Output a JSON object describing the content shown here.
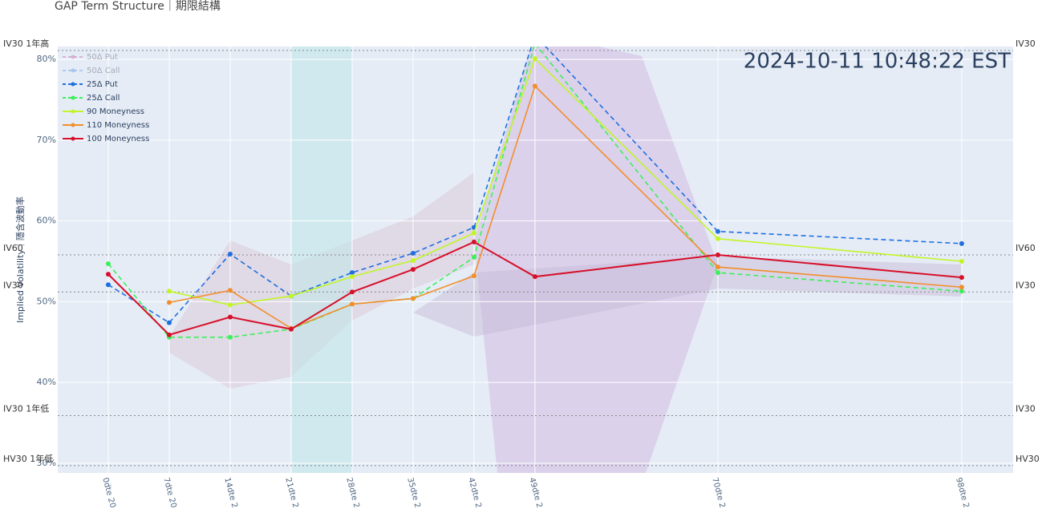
{
  "chart_data": {
    "type": "line",
    "title": "GAP Term Structure｜期限結構",
    "timestamp": "2024-10-11 10:48:22 EST",
    "y_label": "Implied Volatility｜隱含波動率",
    "x": [
      0,
      7,
      14,
      21,
      28,
      35,
      42,
      49,
      70,
      98
    ],
    "xlim": [
      -5.8,
      103.9
    ],
    "xticks": [
      {
        "value": 0,
        "label": "0dte 20"
      },
      {
        "value": 7,
        "label": "7dte 20"
      },
      {
        "value": 14,
        "label": "14dte 2"
      },
      {
        "value": 21,
        "label": "21dte 2"
      },
      {
        "value": 28,
        "label": "28dte 2"
      },
      {
        "value": 35,
        "label": "35dte 2"
      },
      {
        "value": 42,
        "label": "42dte 2"
      },
      {
        "value": 49,
        "label": "49dte 2"
      },
      {
        "value": 70,
        "label": "70dte 2"
      },
      {
        "value": 98,
        "label": "98dte 2"
      }
    ],
    "ylim": [
      28.8,
      81.6
    ],
    "yticks": [
      {
        "value": 30,
        "label": "30%"
      },
      {
        "value": 40,
        "label": "40%"
      },
      {
        "value": 50,
        "label": "50%"
      },
      {
        "value": 60,
        "label": "60%"
      },
      {
        "value": 70,
        "label": "70%"
      },
      {
        "value": 80,
        "label": "80%"
      }
    ],
    "grid": true,
    "highlight_range": [
      21,
      28
    ],
    "reference_lines": [
      {
        "label": "IV30 1年高",
        "right_label": "IV30",
        "value": 81.1
      },
      {
        "label": "IV60",
        "right_label": "IV60",
        "value": 55.8
      },
      {
        "label": "IV30",
        "right_label": "IV30",
        "value": 51.2
      },
      {
        "label": "IV30 1年低",
        "right_label": "IV30",
        "value": 35.9
      },
      {
        "label": "HV30 1年低",
        "right_label": "HV30",
        "value": 29.7
      }
    ],
    "legend": "top-left",
    "series": [
      {
        "name": "50Δ Put",
        "color": "#c77dbb",
        "dash": true,
        "visible": false
      },
      {
        "name": "50Δ Call",
        "color": "#7aa6e8",
        "dash": true,
        "visible": false
      },
      {
        "name": "25Δ Put",
        "color": "#1f6fe0",
        "dash": true,
        "visible": true,
        "values": [
          52.1,
          47.4,
          55.9,
          50.7,
          53.6,
          56.0,
          59.2,
          83.0,
          58.7,
          57.2
        ]
      },
      {
        "name": "25Δ Call",
        "color": "#3cf05a",
        "dash": true,
        "visible": true,
        "values": [
          54.7,
          45.6,
          45.6,
          46.6,
          49.7,
          50.4,
          55.5,
          82.0,
          53.6,
          51.3
        ]
      },
      {
        "name": "90 Moneyness",
        "color": "#c2f527",
        "dash": false,
        "visible": true,
        "values": [
          null,
          51.3,
          49.6,
          50.7,
          53.1,
          55.1,
          58.5,
          80.1,
          57.8,
          55.0
        ]
      },
      {
        "name": "110 Moneyness",
        "color": "#f28e2b",
        "dash": false,
        "visible": true,
        "values": [
          null,
          49.9,
          51.4,
          46.7,
          49.7,
          50.4,
          53.2,
          76.7,
          54.3,
          51.8
        ]
      },
      {
        "name": "100 Moneyness",
        "color": "#d7102a",
        "dash": false,
        "visible": true,
        "values": [
          53.4,
          45.9,
          48.1,
          46.6,
          51.2,
          54.0,
          57.4,
          53.1,
          55.8,
          53.0
        ]
      }
    ]
  }
}
